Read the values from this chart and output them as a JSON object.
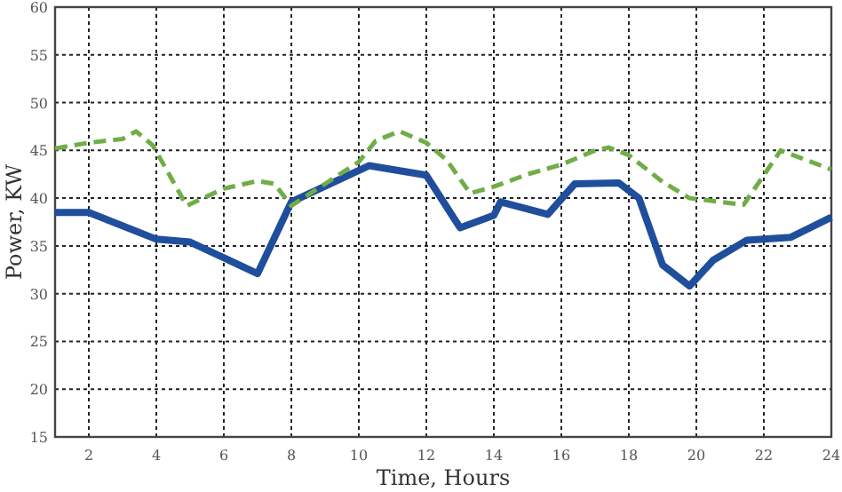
{
  "chart_data": {
    "type": "line",
    "xlabel": "Time, Hours",
    "ylabel": "Power, KW",
    "xlim": [
      1,
      24
    ],
    "ylim": [
      15,
      60
    ],
    "xticks": [
      2,
      4,
      6,
      8,
      10,
      12,
      14,
      16,
      18,
      20,
      22,
      24
    ],
    "yticks": [
      15,
      20,
      25,
      30,
      35,
      40,
      45,
      50,
      55,
      60
    ],
    "grid": true,
    "series": [
      {
        "color": "#1f4e9c",
        "line_style": "solid",
        "x": [
          1,
          2,
          4,
          5,
          7,
          8,
          10.3,
          12,
          13,
          14,
          14.2,
          15.6,
          16.4,
          17.7,
          18.3,
          19,
          19.8,
          20.5,
          21.5,
          22.8,
          24
        ],
        "values": [
          38.5,
          38.5,
          35.7,
          35.4,
          32.1,
          39.6,
          43.4,
          42.4,
          36.9,
          38.2,
          39.6,
          38.3,
          41.5,
          41.6,
          40,
          33,
          30.8,
          33.5,
          35.6,
          35.9,
          38
        ]
      },
      {
        "color": "#70ad47",
        "line_style": "dashed",
        "x": [
          1,
          2,
          3,
          3.4,
          3.9,
          4.9,
          6,
          7,
          7.5,
          8,
          9,
          10,
          10.5,
          11.2,
          12,
          12.6,
          13.3,
          14,
          15,
          16,
          17,
          17.4,
          18,
          19,
          19.8,
          21.4,
          22.5,
          24
        ],
        "values": [
          45.2,
          45.8,
          46.2,
          47,
          45.5,
          39.2,
          41,
          41.8,
          41.5,
          39.2,
          41.5,
          43.8,
          46,
          47,
          45.8,
          44,
          40.5,
          41.2,
          42.5,
          43.5,
          45,
          45.3,
          44.5,
          41.7,
          40,
          39.3,
          45,
          43
        ]
      }
    ]
  }
}
